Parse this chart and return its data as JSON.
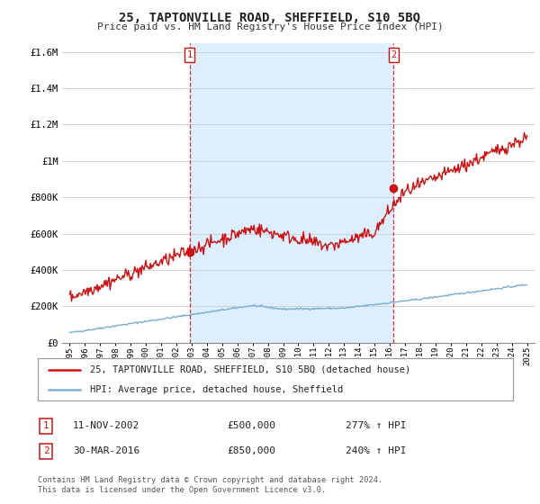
{
  "title": "25, TAPTONVILLE ROAD, SHEFFIELD, S10 5BQ",
  "subtitle": "Price paid vs. HM Land Registry's House Price Index (HPI)",
  "ylim": [
    0,
    1650000
  ],
  "xlim_start": 1994.5,
  "xlim_end": 2025.5,
  "yticks": [
    0,
    200000,
    400000,
    600000,
    800000,
    1000000,
    1200000,
    1400000,
    1600000
  ],
  "ytick_labels": [
    "£0",
    "£200K",
    "£400K",
    "£600K",
    "£800K",
    "£1M",
    "£1.2M",
    "£1.4M",
    "£1.6M"
  ],
  "xticks": [
    1995,
    1996,
    1997,
    1998,
    1999,
    2000,
    2001,
    2002,
    2003,
    2004,
    2005,
    2006,
    2007,
    2008,
    2009,
    2010,
    2011,
    2012,
    2013,
    2014,
    2015,
    2016,
    2017,
    2018,
    2019,
    2020,
    2021,
    2022,
    2023,
    2024,
    2025
  ],
  "hpi_color": "#7bafd4",
  "price_color": "#cc1111",
  "vline_color": "#cc1111",
  "shade_color": "#ddeeff",
  "sale1_x": 2002.87,
  "sale1_y": 500000,
  "sale2_x": 2016.25,
  "sale2_y": 850000,
  "legend_label_red": "25, TAPTONVILLE ROAD, SHEFFIELD, S10 5BQ (detached house)",
  "legend_label_blue": "HPI: Average price, detached house, Sheffield",
  "annotation1_date": "11-NOV-2002",
  "annotation1_price": "£500,000",
  "annotation1_hpi": "277% ↑ HPI",
  "annotation2_date": "30-MAR-2016",
  "annotation2_price": "£850,000",
  "annotation2_hpi": "240% ↑ HPI",
  "footer": "Contains HM Land Registry data © Crown copyright and database right 2024.\nThis data is licensed under the Open Government Licence v3.0.",
  "bg_color": "#ffffff",
  "grid_color": "#cccccc"
}
